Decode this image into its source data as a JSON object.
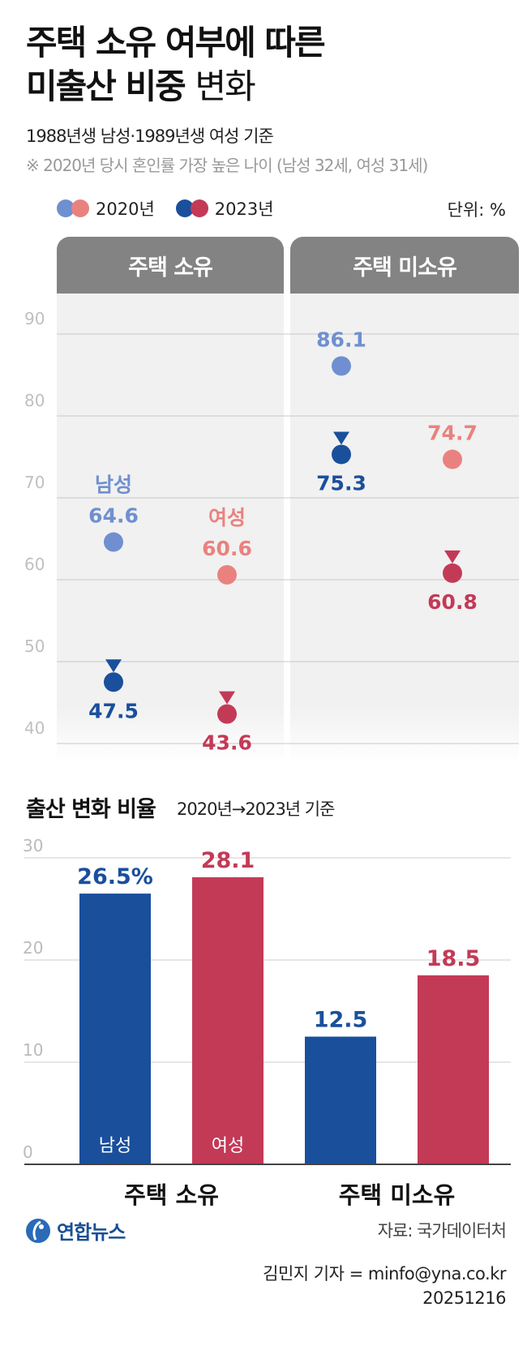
{
  "title": {
    "line1": "주택 소유 여부에 따른",
    "line2_bold": "미출산 비중",
    "line2_light": "변화"
  },
  "subtitle": "1988년생 남성·1989년생 여성 기준",
  "note": "※ 2020년 당시 혼인률 가장 높은 나이 (남성 32세, 여성 31세)",
  "legend": {
    "items": [
      {
        "label": "2020년",
        "colors": [
          "#6f8fd0",
          "#e9827f"
        ]
      },
      {
        "label": "2023년",
        "colors": [
          "#1a4f9c",
          "#c33a57"
        ]
      }
    ]
  },
  "unit": "단위: %",
  "panels": [
    "주택 소유",
    "주택 미소유"
  ],
  "colors": {
    "male_2020": "#6f8fd0",
    "female_2020": "#e9827f",
    "male_2023": "#1a4f9c",
    "female_2023": "#c33a57",
    "header_gray": "#838383"
  },
  "chart_data": [
    {
      "type": "scatter",
      "title": "",
      "ylim": [
        40,
        90
      ],
      "yticks": [
        90,
        80,
        70,
        60,
        50,
        40
      ],
      "grid": true,
      "categories": [
        "주택 소유",
        "주택 미소유"
      ],
      "groups": [
        {
          "category": "주택 소유",
          "name": "남성",
          "from": 64.6,
          "to": 47.5,
          "from_label": "64.6",
          "to_label": "47.5",
          "series_label": "남성"
        },
        {
          "category": "주택 소유",
          "name": "여성",
          "from": 60.6,
          "to": 43.6,
          "from_label": "60.6",
          "to_label": "43.6",
          "series_label": "여성"
        },
        {
          "category": "주택 미소유",
          "name": "남성",
          "from": 86.1,
          "to": 75.3,
          "from_label": "86.1",
          "to_label": "75.3",
          "series_label": ""
        },
        {
          "category": "주택 미소유",
          "name": "여성",
          "from": 74.7,
          "to": 60.8,
          "from_label": "74.7",
          "to_label": "60.8",
          "series_label": ""
        }
      ]
    },
    {
      "type": "bar",
      "title": "출산 변화 비율",
      "subtitle": "2020년→2023년 기준",
      "categories": [
        "주택 소유",
        "주택 미소유"
      ],
      "ylim": [
        0,
        30
      ],
      "yticks": [
        30,
        20,
        10,
        0
      ],
      "grid": true,
      "series": [
        {
          "name": "남성",
          "values": [
            26.5,
            12.5
          ],
          "labels": [
            "26.5%",
            "12.5"
          ]
        },
        {
          "name": "여성",
          "values": [
            28.1,
            18.5
          ],
          "labels": [
            "28.1",
            "18.5"
          ]
        }
      ]
    }
  ],
  "footer": {
    "logo": "연합뉴스",
    "source": "자료: 국가데이터처",
    "reporter": "김민지 기자 = minfo@yna.co.kr",
    "date": "20251216"
  }
}
